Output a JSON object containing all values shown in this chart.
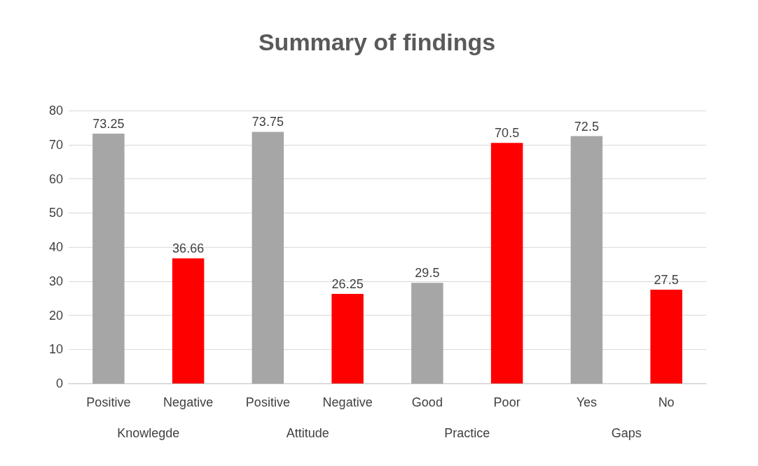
{
  "chart_data": {
    "type": "bar",
    "title": "Summary of findings",
    "categories": [
      "Positive",
      "Negative",
      "Positive",
      "Negative",
      "Good",
      "Poor",
      "Yes",
      "No"
    ],
    "values": [
      73.25,
      36.66,
      73.75,
      26.25,
      29.5,
      70.5,
      72.5,
      27.5
    ],
    "colors": [
      "#a6a6a6",
      "#ff0000",
      "#a6a6a6",
      "#ff0000",
      "#a6a6a6",
      "#ff0000",
      "#a6a6a6",
      "#ff0000"
    ],
    "annotations": [
      "Knowlegde",
      "Attitude",
      "Practice",
      "Gaps"
    ],
    "ylim": [
      0,
      80
    ],
    "yticks": [
      0,
      10,
      20,
      30,
      40,
      50,
      60,
      70,
      80
    ],
    "grid": "y",
    "data_labels": true
  }
}
